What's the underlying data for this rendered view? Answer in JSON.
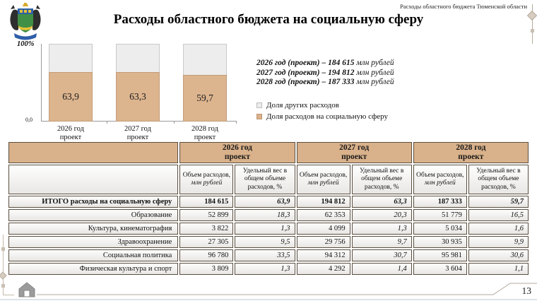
{
  "header": {
    "corner_text": "Расходы областного бюджета Тюменской области",
    "title": "Расходы областного бюджета на социальную сферу"
  },
  "chart": {
    "axis_top_label": "100%",
    "axis_bottom_label": "0,0",
    "bars": [
      {
        "category_line1": "2026 год",
        "category_line2": "проект",
        "value_label": "63,9",
        "social_pct": 63.9
      },
      {
        "category_line1": "2027 год",
        "category_line2": "проект",
        "value_label": "63,3",
        "social_pct": 63.3
      },
      {
        "category_line1": "2028 год",
        "category_line2": "проект",
        "value_label": "59,7",
        "social_pct": 59.7
      }
    ]
  },
  "chart_data": {
    "type": "bar",
    "subtype": "100%-stacked-column",
    "categories": [
      "2026 год проект",
      "2027 год проект",
      "2028 год проект"
    ],
    "series": [
      {
        "name": "Доля расходов на социальную сферу",
        "values": [
          63.9,
          63.3,
          59.7
        ],
        "color": "#dcb48e"
      },
      {
        "name": "Доля других расходов",
        "values": [
          36.1,
          36.7,
          40.3
        ],
        "color": "#ededed"
      }
    ],
    "title": "Расходы областного бюджета на социальную сферу",
    "xlabel": "",
    "ylabel": "",
    "ylim": [
      0,
      100
    ],
    "y_axis_labels": [
      "0,0",
      "100%"
    ],
    "data_labels": [
      "63,9",
      "63,3",
      "59,7"
    ],
    "totals_mln_rub": [
      184615,
      194812,
      187333
    ],
    "grid": false,
    "legend_position": "right"
  },
  "annotations": [
    {
      "bold_part": "2026 год (проект) –  184 615",
      "unit": "млн рублей"
    },
    {
      "bold_part": "2027 год (проект) – 194 812",
      "unit": "млн рублей"
    },
    {
      "bold_part": "2028 год (проект) – 187 333",
      "unit": "млн рублей"
    }
  ],
  "legend": {
    "items": [
      {
        "label": "Доля других расходов",
        "color": "#ececec"
      },
      {
        "label": "Доля расходов на социальную сферу",
        "color": "#d9b28b"
      }
    ]
  },
  "table": {
    "year_headers": [
      {
        "line1": "2026 год",
        "line2": "проект"
      },
      {
        "line1": "2027 год",
        "line2": "проект"
      },
      {
        "line1": "2028 год",
        "line2": "проект"
      }
    ],
    "sub_headers": {
      "volume": "Объем расходов,",
      "volume_unit": "млн рублей",
      "share": "Удельный вес в общем объеме расходов, %"
    },
    "rows": [
      {
        "label": "ИТОГО расходы на социальную сферу",
        "cells": [
          "184 615",
          "63,9",
          "194 812",
          "63,3",
          "187 333",
          "59,7"
        ]
      },
      {
        "label": "Образование",
        "cells": [
          "52 899",
          "18,3",
          "62 353",
          "20,3",
          "51 779",
          "16,5"
        ]
      },
      {
        "label": "Культура, кинематография",
        "cells": [
          "3 822",
          "1,3",
          "4 099",
          "1,3",
          "5 034",
          "1,6"
        ]
      },
      {
        "label": "Здравоохранение",
        "cells": [
          "27 305",
          "9,5",
          "29 756",
          "9,7",
          "30 935",
          "9,9"
        ]
      },
      {
        "label": "Социальная политика",
        "cells": [
          "96 780",
          "33,5",
          "94 312",
          "30,7",
          "95 981",
          "30,6"
        ]
      },
      {
        "label": "Физическая культура и спорт",
        "cells": [
          "3 809",
          "1,3",
          "4 292",
          "1,4",
          "3 604",
          "1,1"
        ]
      }
    ]
  },
  "footer": {
    "page_number": "13"
  },
  "colors": {
    "accent_beige": "#d9b18a",
    "bar_social": "#dcb48e",
    "bar_other": "#ededed",
    "table_border": "#5a4f40",
    "decor": "#c4b9ac"
  }
}
